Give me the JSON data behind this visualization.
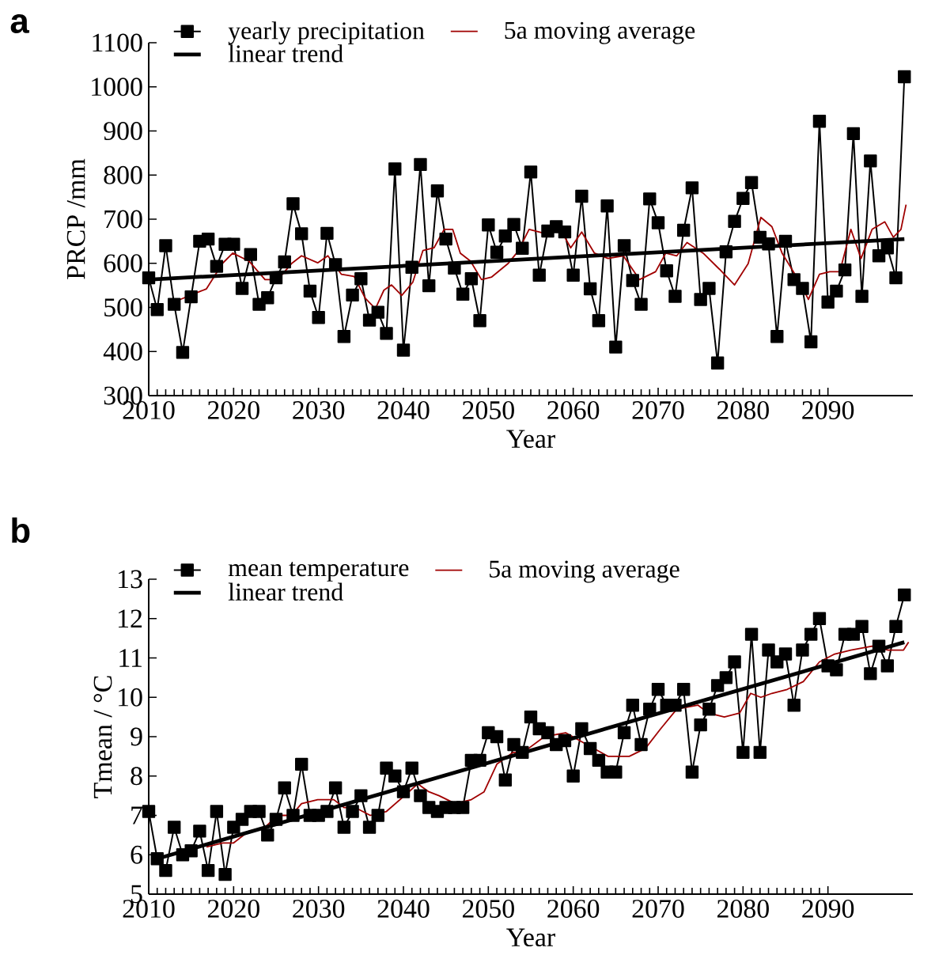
{
  "chart_data": [
    {
      "type": "line",
      "title": "a",
      "xlabel": "Year",
      "ylabel": "PRCP /mm",
      "xlim": [
        2010,
        2100
      ],
      "ylim": [
        300,
        1100
      ],
      "xticks": [
        2010,
        2020,
        2030,
        2040,
        2050,
        2060,
        2070,
        2080,
        2090
      ],
      "yticks": [
        300,
        400,
        500,
        600,
        700,
        800,
        900,
        1000,
        1100
      ],
      "legend": "top left",
      "series": [
        {
          "name": "yearly precipitation",
          "color": "#000000",
          "marker": "square",
          "line_style": "solid",
          "x": [
            2010,
            2011,
            2012,
            2013,
            2014,
            2015,
            2016,
            2017,
            2018,
            2019,
            2020,
            2021,
            2022,
            2023,
            2024,
            2025,
            2026,
            2027,
            2028,
            2029,
            2030,
            2031,
            2032,
            2033,
            2034,
            2035,
            2036,
            2037,
            2038,
            2039,
            2040,
            2041,
            2042,
            2043,
            2044,
            2045,
            2046,
            2047,
            2048,
            2049,
            2050,
            2051,
            2052,
            2053,
            2054,
            2055,
            2056,
            2057,
            2058,
            2059,
            2060,
            2061,
            2062,
            2063,
            2064,
            2065,
            2066,
            2067,
            2068,
            2069,
            2070,
            2071,
            2072,
            2073,
            2074,
            2075,
            2076,
            2077,
            2078,
            2079,
            2080,
            2081,
            2082,
            2083,
            2084,
            2085,
            2086,
            2087,
            2088,
            2089,
            2090,
            2091,
            2092,
            2093,
            2094,
            2095,
            2096,
            2097,
            2098,
            2099
          ],
          "values": [
            567,
            495,
            640,
            507,
            398,
            524,
            650,
            655,
            593,
            643,
            643,
            543,
            620,
            507,
            522,
            567,
            603,
            735,
            667,
            537,
            477,
            668,
            597,
            434,
            528,
            565,
            471,
            489,
            441,
            814,
            403,
            591,
            824,
            549,
            764,
            655,
            589,
            530,
            565,
            470,
            687,
            625,
            662,
            688,
            634,
            807,
            573,
            673,
            683,
            671,
            573,
            752,
            542,
            470,
            730,
            410,
            640,
            561,
            507,
            746,
            692,
            583,
            525,
            675,
            771,
            518,
            543,
            374,
            626,
            695,
            747,
            783,
            659,
            644,
            434,
            650,
            563,
            543,
            422,
            922,
            512,
            537,
            585,
            894,
            525,
            832,
            617,
            635,
            567,
            1023
          ]
        },
        {
          "name": "5a moving average",
          "color": "#a00000",
          "marker": "none",
          "line_style": "solid",
          "x": [
            2013.7,
            2016.8,
            2018.7,
            2019.9,
            2021.8,
            2023.7,
            2025.2,
            2026.8,
            2028.0,
            2029.9,
            2031.1,
            2032.7,
            2034.2,
            2035.5,
            2036.7,
            2037.7,
            2038.6,
            2039.8,
            2041.1,
            2042.3,
            2043.6,
            2044.8,
            2045.8,
            2046.7,
            2047.9,
            2049.2,
            2050.4,
            2052.3,
            2053.5,
            2054.8,
            2056.6,
            2058.5,
            2059.7,
            2061.0,
            2062.5,
            2064.1,
            2065.9,
            2067.8,
            2069.7,
            2070.9,
            2072.2,
            2073.4,
            2075.3,
            2077.2,
            2079.0,
            2080.6,
            2082.1,
            2083.4,
            2084.6,
            2086.5,
            2087.7,
            2089.0,
            2090.2,
            2091.4,
            2092.7,
            2093.9,
            2095.2,
            2096.7,
            2097.7,
            2098.6,
            2099.2
          ],
          "values": [
            518,
            542,
            600,
            623,
            605,
            563,
            563,
            599,
            617,
            601,
            617,
            575,
            570,
            521,
            497,
            539,
            551,
            527,
            557,
            629,
            635,
            677,
            677,
            623,
            605,
            563,
            569,
            599,
            627,
            677,
            668,
            677,
            635,
            671,
            623,
            611,
            617,
            563,
            581,
            623,
            617,
            647,
            623,
            587,
            551,
            599,
            704,
            683,
            623,
            563,
            518,
            575,
            581,
            581,
            677,
            611,
            677,
            694,
            659,
            677,
            733
          ]
        },
        {
          "name": "linear trend",
          "color": "#000000",
          "marker": "none",
          "line_style": "solid",
          "x": [
            2010,
            2099
          ],
          "values": [
            563,
            655
          ]
        }
      ]
    },
    {
      "type": "line",
      "title": "b",
      "xlabel": "Year",
      "ylabel": "Tmean / °C",
      "xlim": [
        2010,
        2100
      ],
      "ylim": [
        5,
        13
      ],
      "xticks": [
        2010,
        2020,
        2030,
        2040,
        2050,
        2060,
        2070,
        2080,
        2090
      ],
      "yticks": [
        5,
        6,
        7,
        8,
        9,
        10,
        11,
        12,
        13
      ],
      "legend": "top left",
      "series": [
        {
          "name": "mean temperature",
          "color": "#000000",
          "marker": "square",
          "line_style": "solid",
          "x": [
            2010,
            2011,
            2012,
            2013,
            2014,
            2015,
            2016,
            2017,
            2018,
            2019,
            2020,
            2021,
            2022,
            2023,
            2024,
            2025,
            2026,
            2027,
            2028,
            2029,
            2030,
            2031,
            2032,
            2033,
            2034,
            2035,
            2036,
            2037,
            2038,
            2039,
            2040,
            2041,
            2042,
            2043,
            2044,
            2045,
            2046,
            2047,
            2048,
            2049,
            2050,
            2051,
            2052,
            2053,
            2054,
            2055,
            2056,
            2057,
            2058,
            2059,
            2060,
            2061,
            2062,
            2063,
            2064,
            2065,
            2066,
            2067,
            2068,
            2069,
            2070,
            2071,
            2072,
            2073,
            2074,
            2075,
            2076,
            2077,
            2078,
            2079,
            2080,
            2081,
            2082,
            2083,
            2084,
            2085,
            2086,
            2087,
            2088,
            2089,
            2090,
            2091,
            2092,
            2093,
            2094,
            2095,
            2096,
            2097,
            2098,
            2099
          ],
          "values": [
            7.1,
            5.9,
            5.6,
            6.7,
            6.0,
            6.1,
            6.6,
            5.6,
            7.1,
            5.5,
            6.7,
            6.9,
            7.1,
            7.1,
            6.5,
            6.9,
            7.7,
            7.0,
            8.3,
            7.0,
            7.0,
            7.1,
            7.7,
            6.7,
            7.1,
            7.5,
            6.7,
            7.0,
            8.2,
            8.0,
            7.6,
            8.2,
            7.5,
            7.2,
            7.1,
            7.2,
            7.2,
            7.2,
            8.4,
            8.4,
            9.1,
            9.0,
            7.9,
            8.8,
            8.6,
            9.5,
            9.2,
            9.1,
            8.8,
            8.9,
            8.0,
            9.2,
            8.7,
            8.4,
            8.1,
            8.1,
            9.1,
            9.8,
            8.8,
            9.7,
            10.2,
            9.8,
            9.8,
            10.2,
            8.1,
            9.3,
            9.7,
            10.3,
            10.5,
            10.9,
            8.6,
            11.6,
            8.6,
            11.2,
            10.9,
            11.1,
            9.8,
            11.2,
            11.6,
            12.0,
            10.8,
            10.7,
            11.6,
            11.6,
            11.8,
            10.6,
            11.3,
            10.8,
            11.8,
            12.6
          ]
        },
        {
          "name": "5a moving average",
          "color": "#a00000",
          "marker": "none",
          "line_style": "solid",
          "x": [
            2016.8,
            2018.7,
            2020.0,
            2021.8,
            2023.7,
            2025.2,
            2026.8,
            2028.0,
            2029.9,
            2031.8,
            2033.0,
            2034.3,
            2036.1,
            2038.0,
            2041.7,
            2043.0,
            2044.2,
            2046.1,
            2048.0,
            2049.5,
            2051.0,
            2052.9,
            2054.1,
            2056.6,
            2059.1,
            2061.6,
            2064.1,
            2066.6,
            2068.5,
            2070.3,
            2072.2,
            2074.7,
            2075.9,
            2077.8,
            2079.6,
            2080.9,
            2082.1,
            2083.4,
            2085.2,
            2087.1,
            2089.0,
            2090.8,
            2092.7,
            2095.2,
            2097.1,
            2098.9,
            2099.5
          ],
          "values": [
            6.2,
            6.3,
            6.3,
            6.6,
            6.7,
            7.0,
            7.0,
            7.3,
            7.4,
            7.4,
            7.2,
            7.2,
            7.0,
            7.1,
            7.8,
            7.6,
            7.5,
            7.3,
            7.4,
            7.6,
            8.3,
            8.6,
            8.6,
            9.0,
            9.1,
            8.8,
            8.5,
            8.5,
            8.7,
            9.2,
            9.7,
            9.8,
            9.6,
            9.5,
            9.6,
            10.1,
            10.0,
            10.1,
            10.2,
            10.4,
            10.9,
            11.1,
            11.2,
            11.3,
            11.2,
            11.2,
            11.4
          ]
        },
        {
          "name": "linear trend",
          "color": "#000000",
          "marker": "none",
          "line_style": "solid",
          "x": [
            2011,
            2099
          ],
          "values": [
            5.9,
            11.4
          ]
        }
      ]
    }
  ]
}
